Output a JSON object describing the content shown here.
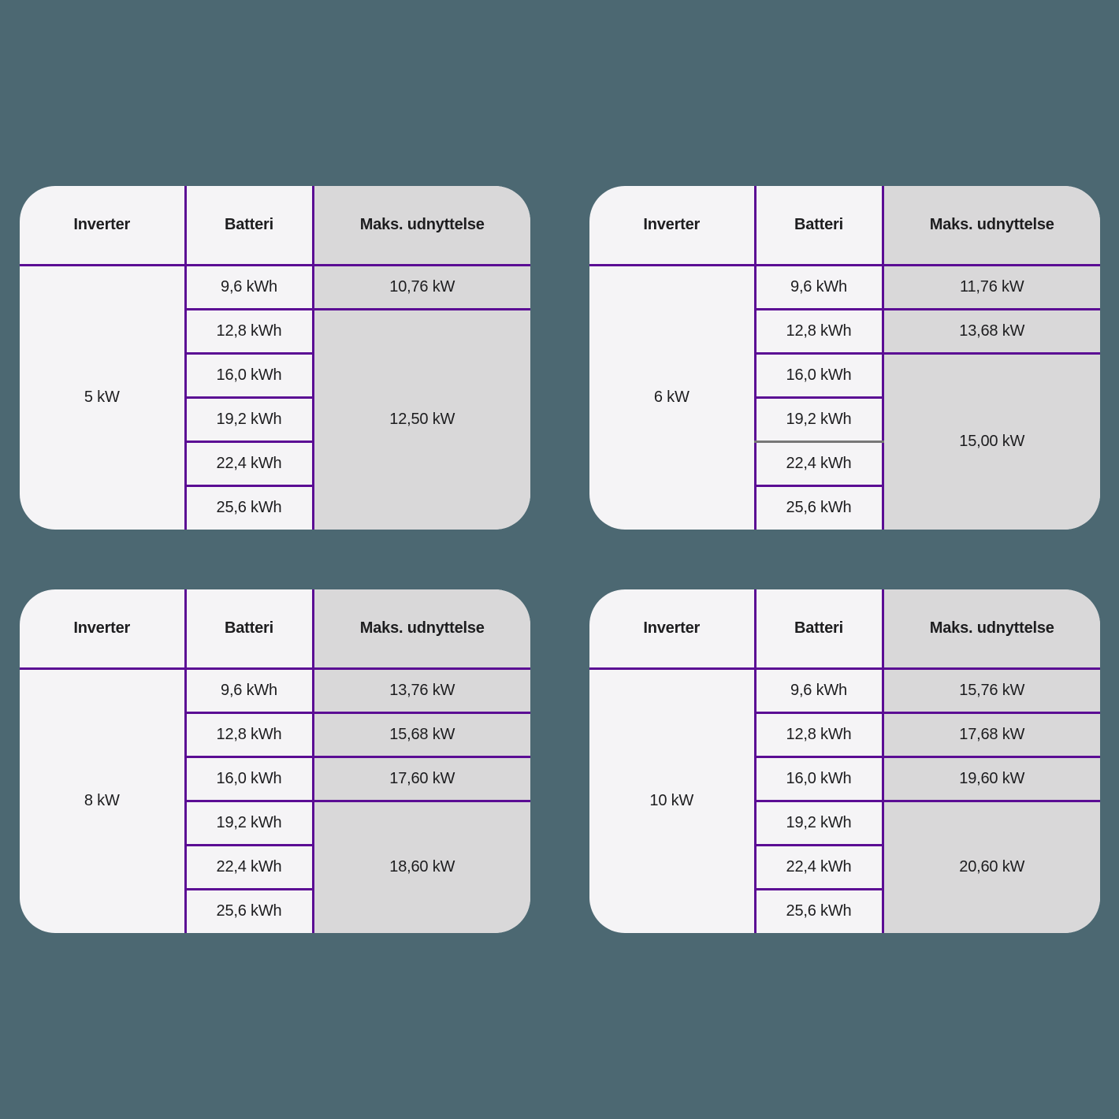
{
  "headers": {
    "inverter": "Inverter",
    "batteri": "Batteri",
    "maks": "Maks. udnyttelse"
  },
  "tables": [
    {
      "inverter": "5 kW",
      "batteries": [
        "9,6 kWh",
        "12,8 kWh",
        "16,0 kWh",
        "19,2 kWh",
        "22,4 kWh",
        "25,6 kWh"
      ],
      "maks_groups": [
        "10,76 kW",
        "12,50 kW"
      ]
    },
    {
      "inverter": "6 kW",
      "batteries": [
        "9,6 kWh",
        "12,8 kWh",
        "16,0 kWh",
        "19,2 kWh",
        "22,4 kWh",
        "25,6 kWh"
      ],
      "maks_groups": [
        "11,76 kW",
        "13,68 kW",
        "15,00 kW"
      ]
    },
    {
      "inverter": "8 kW",
      "batteries": [
        "9,6 kWh",
        "12,8 kWh",
        "16,0 kWh",
        "19,2 kWh",
        "22,4 kWh",
        "25,6 kWh"
      ],
      "maks_groups": [
        "13,76 kW",
        "15,68 kW",
        "17,60 kW",
        "18,60 kW"
      ]
    },
    {
      "inverter": "10 kW",
      "batteries": [
        "9,6 kWh",
        "12,8 kWh",
        "16,0 kWh",
        "19,2 kWh",
        "22,4 kWh",
        "25,6 kWh"
      ],
      "maks_groups": [
        "15,76 kW",
        "17,68 kW",
        "19,60 kW",
        "20,60 kW"
      ]
    }
  ],
  "colors": {
    "background": "#4c6872",
    "table_border_purple": "#5b0d94",
    "divider_gray": "#777777",
    "cell_light": "#f5f4f6",
    "maks_column_gray": "#d9d8d9",
    "text": "#1d1d1f"
  },
  "chart_data": {
    "type": "table",
    "title": "",
    "columns": [
      "Inverter",
      "Batteri",
      "Maks. udnyttelse"
    ],
    "tables": [
      {
        "inverter_kw": 5,
        "rows": [
          {
            "battery_kwh": 9.6,
            "max_utilization_kw": 10.76
          },
          {
            "battery_kwh": 12.8,
            "max_utilization_kw": 12.5
          },
          {
            "battery_kwh": 16.0,
            "max_utilization_kw": 12.5
          },
          {
            "battery_kwh": 19.2,
            "max_utilization_kw": 12.5
          },
          {
            "battery_kwh": 22.4,
            "max_utilization_kw": 12.5
          },
          {
            "battery_kwh": 25.6,
            "max_utilization_kw": 12.5
          }
        ]
      },
      {
        "inverter_kw": 6,
        "rows": [
          {
            "battery_kwh": 9.6,
            "max_utilization_kw": 11.76
          },
          {
            "battery_kwh": 12.8,
            "max_utilization_kw": 13.68
          },
          {
            "battery_kwh": 16.0,
            "max_utilization_kw": 15.0
          },
          {
            "battery_kwh": 19.2,
            "max_utilization_kw": 15.0
          },
          {
            "battery_kwh": 22.4,
            "max_utilization_kw": 15.0
          },
          {
            "battery_kwh": 25.6,
            "max_utilization_kw": 15.0
          }
        ]
      },
      {
        "inverter_kw": 8,
        "rows": [
          {
            "battery_kwh": 9.6,
            "max_utilization_kw": 13.76
          },
          {
            "battery_kwh": 12.8,
            "max_utilization_kw": 15.68
          },
          {
            "battery_kwh": 16.0,
            "max_utilization_kw": 17.6
          },
          {
            "battery_kwh": 19.2,
            "max_utilization_kw": 18.6
          },
          {
            "battery_kwh": 22.4,
            "max_utilization_kw": 18.6
          },
          {
            "battery_kwh": 25.6,
            "max_utilization_kw": 18.6
          }
        ]
      },
      {
        "inverter_kw": 10,
        "rows": [
          {
            "battery_kwh": 9.6,
            "max_utilization_kw": 15.76
          },
          {
            "battery_kwh": 12.8,
            "max_utilization_kw": 17.68
          },
          {
            "battery_kwh": 16.0,
            "max_utilization_kw": 19.6
          },
          {
            "battery_kwh": 19.2,
            "max_utilization_kw": 20.6
          },
          {
            "battery_kwh": 22.4,
            "max_utilization_kw": 20.6
          },
          {
            "battery_kwh": 25.6,
            "max_utilization_kw": 20.6
          }
        ]
      }
    ]
  }
}
